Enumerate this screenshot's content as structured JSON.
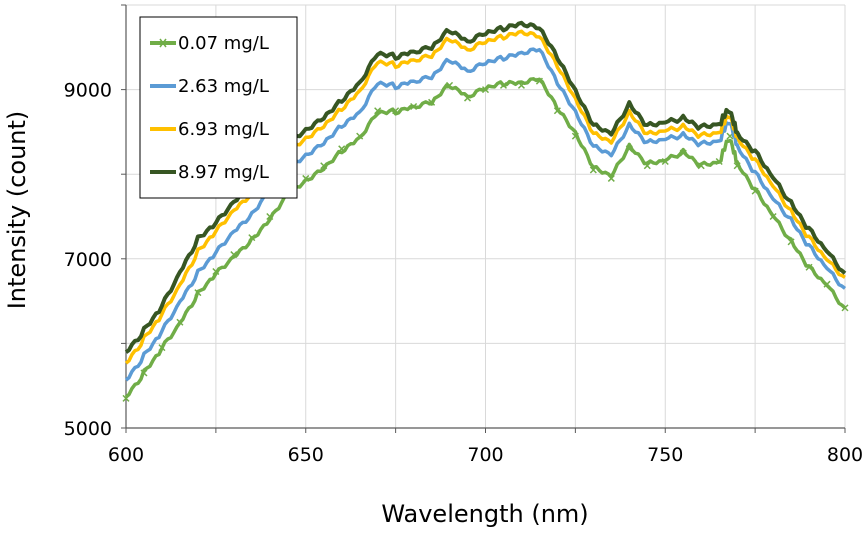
{
  "chart_data": {
    "type": "line",
    "title": "",
    "xlabel": "Wavelength (nm)",
    "ylabel": "Intensity (count)",
    "xlim": [
      600,
      800
    ],
    "ylim": [
      5000,
      10000
    ],
    "xticks": [
      600,
      650,
      700,
      750,
      800
    ],
    "yticks": [
      5000,
      7000,
      9000
    ],
    "grid": true,
    "legend_position": "top-left",
    "x": [
      600,
      605,
      610,
      615,
      620,
      625,
      630,
      635,
      640,
      645,
      650,
      655,
      660,
      665,
      670,
      675,
      680,
      685,
      690,
      695,
      700,
      705,
      710,
      715,
      720,
      725,
      730,
      735,
      740,
      745,
      750,
      755,
      760,
      765,
      768,
      770,
      775,
      780,
      785,
      790,
      795,
      800
    ],
    "series": [
      {
        "name": "0.07 mg/L",
        "color": "#70AD47",
        "marker": "x",
        "values": [
          5350,
          5650,
          5950,
          6250,
          6600,
          6850,
          7050,
          7250,
          7500,
          7800,
          7950,
          8100,
          8300,
          8450,
          8750,
          8750,
          8800,
          8850,
          9050,
          8900,
          9000,
          9050,
          9050,
          9100,
          8750,
          8450,
          8050,
          7950,
          8300,
          8100,
          8150,
          8250,
          8100,
          8150,
          8450,
          8100,
          7800,
          7500,
          7200,
          6900,
          6700,
          6420
        ]
      },
      {
        "name": "2.63 mg/L",
        "color": "#5B9BD5",
        "marker": "",
        "values": [
          5550,
          5850,
          6150,
          6500,
          6850,
          7100,
          7350,
          7550,
          7850,
          8100,
          8250,
          8400,
          8600,
          8750,
          9100,
          9050,
          9100,
          9150,
          9350,
          9200,
          9300,
          9350,
          9400,
          9450,
          9050,
          8700,
          8300,
          8200,
          8550,
          8350,
          8400,
          8450,
          8350,
          8400,
          8650,
          8300,
          8000,
          7700,
          7450,
          7150,
          6900,
          6650
        ]
      },
      {
        "name": "6.93 mg/L",
        "color": "#FFC000",
        "marker": "",
        "values": [
          5750,
          6050,
          6350,
          6700,
          7100,
          7350,
          7600,
          7800,
          8050,
          8300,
          8450,
          8600,
          8800,
          9000,
          9350,
          9300,
          9350,
          9400,
          9600,
          9450,
          9550,
          9600,
          9650,
          9600,
          9250,
          8850,
          8450,
          8350,
          8700,
          8450,
          8500,
          8550,
          8450,
          8500,
          8720,
          8400,
          8150,
          7850,
          7550,
          7250,
          7000,
          6780
        ]
      },
      {
        "name": "8.97 mg/L",
        "color": "#375623",
        "marker": "",
        "values": [
          5880,
          6150,
          6450,
          6850,
          7250,
          7450,
          7700,
          7900,
          8150,
          8400,
          8550,
          8700,
          8900,
          9100,
          9450,
          9400,
          9450,
          9500,
          9700,
          9550,
          9650,
          9700,
          9750,
          9700,
          9350,
          8950,
          8550,
          8450,
          8800,
          8550,
          8600,
          8650,
          8550,
          8600,
          8780,
          8450,
          8250,
          7950,
          7650,
          7350,
          7100,
          6830
        ]
      }
    ]
  }
}
